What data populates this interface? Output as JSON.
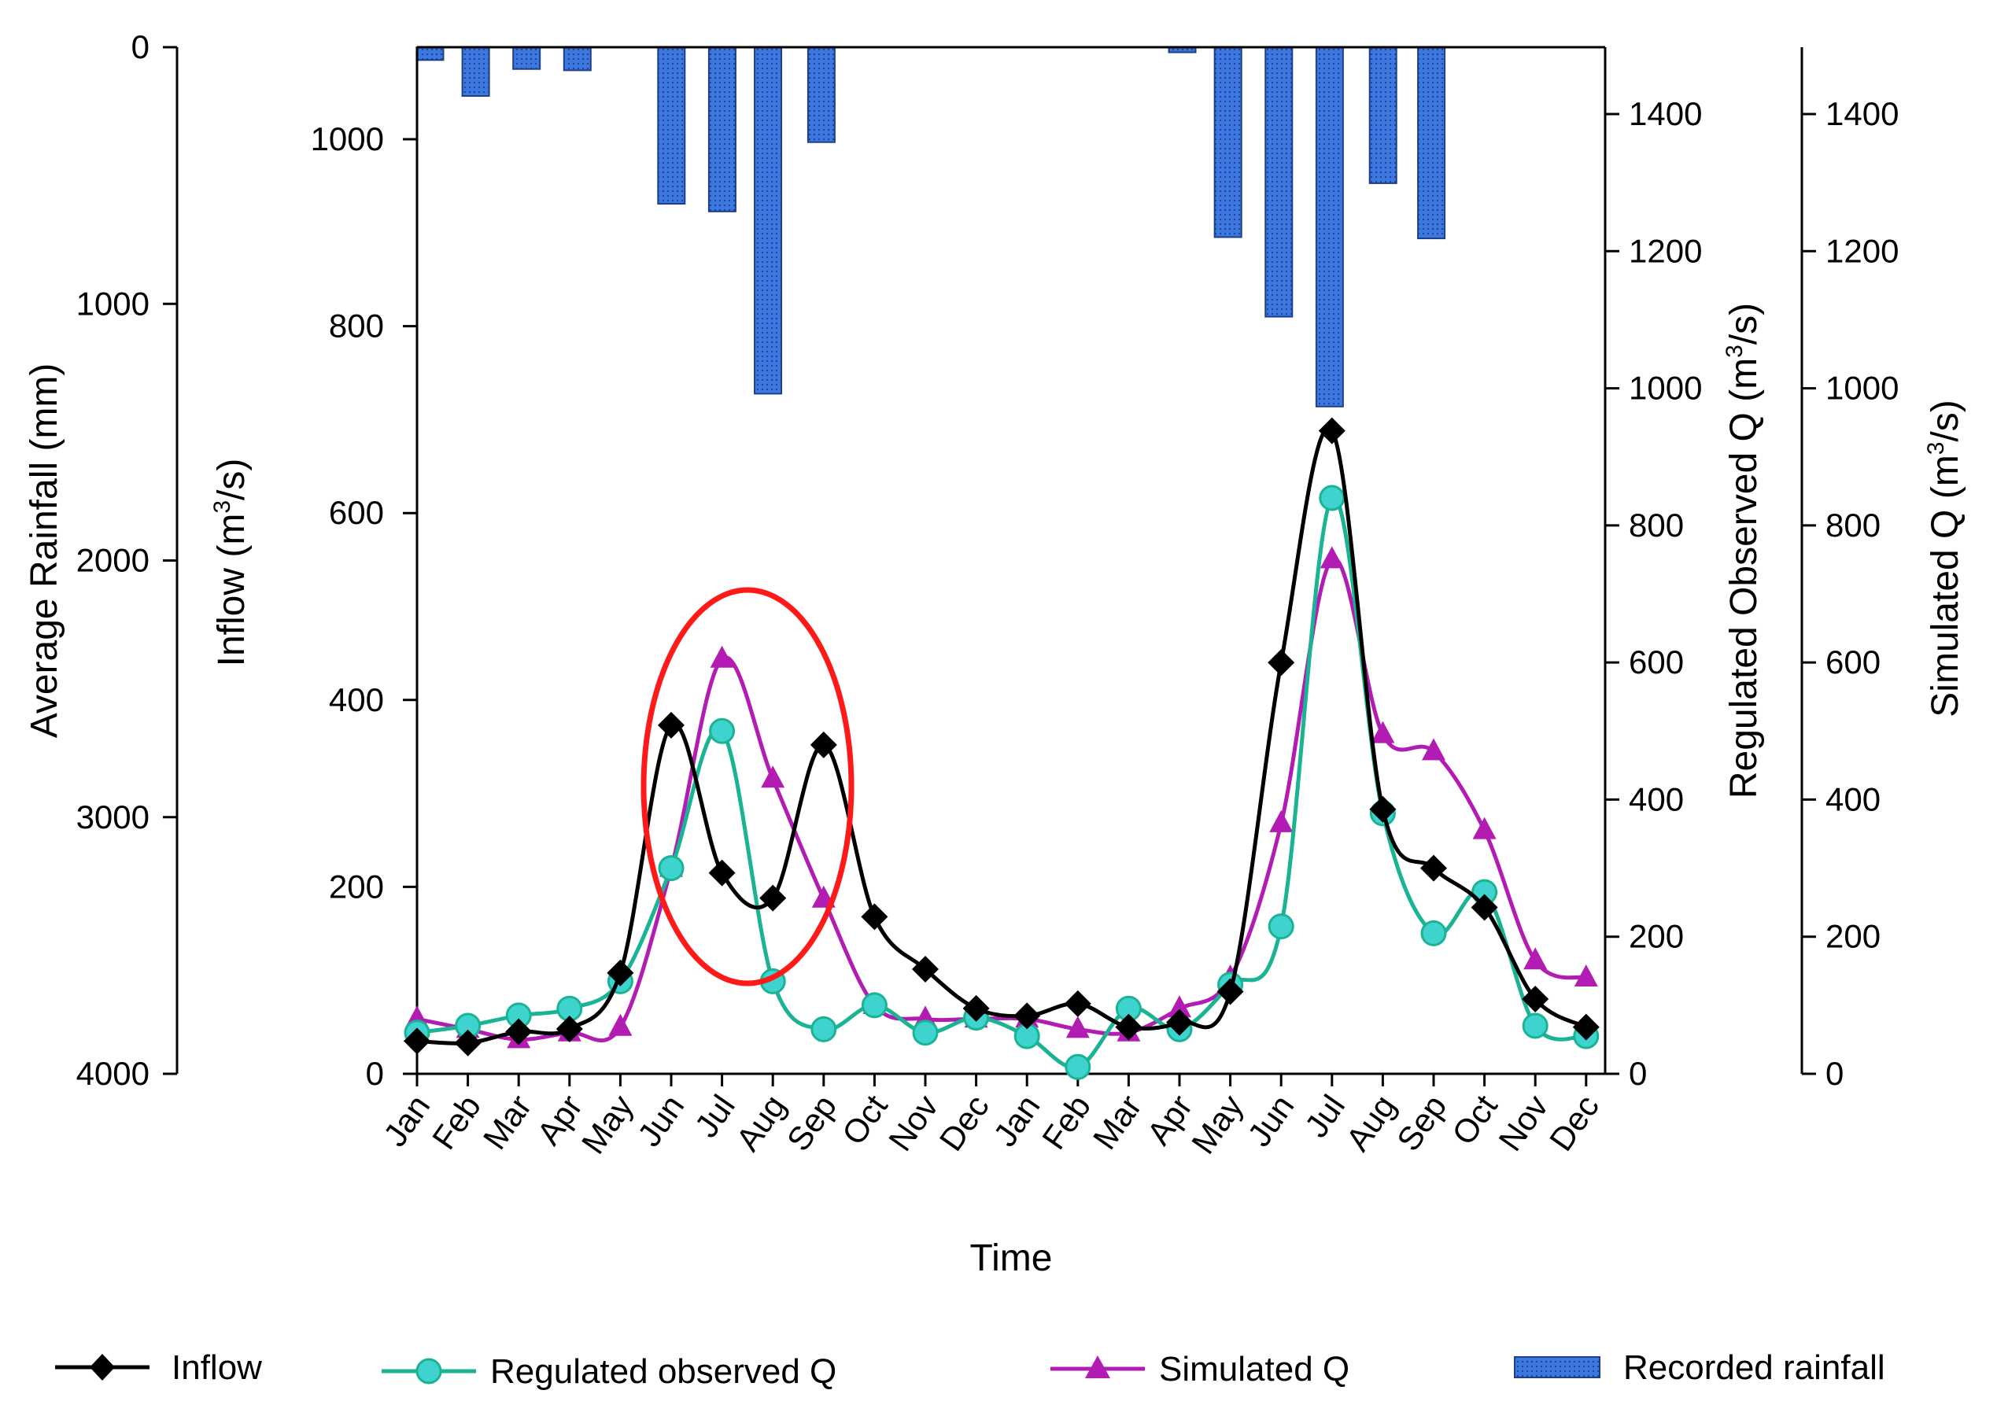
{
  "chart_data": {
    "type": "line",
    "title": "",
    "categories": [
      "Jan",
      "Feb",
      "Mar",
      "Apr",
      "May",
      "Jun",
      "Jul",
      "Aug",
      "Sep",
      "Oct",
      "Nov",
      "Dec",
      "Jan",
      "Feb",
      "Mar",
      "Apr",
      "May",
      "Jun",
      "Jul",
      "Aug",
      "Sep",
      "Oct",
      "Nov",
      "Dec"
    ],
    "xlabel": "Time",
    "axes": {
      "rainfall": {
        "label": "Average Rainfall (mm)",
        "range": [
          4000,
          0
        ],
        "ticks": [
          0,
          1000,
          2000,
          3000,
          4000
        ],
        "inverted": true
      },
      "inflow": {
        "label_main": "Inflow (m",
        "label_sup": "3",
        "label_end": "/s)",
        "range": [
          0,
          1100
        ],
        "ticks": [
          0,
          200,
          400,
          600,
          800,
          1000
        ]
      },
      "regulated": {
        "label_main": "Regulated Observed Q (m",
        "label_sup": "3",
        "label_end": "/s)",
        "range": [
          0,
          1500
        ],
        "ticks": [
          0,
          200,
          400,
          600,
          800,
          1000,
          1200,
          1400
        ]
      },
      "simulated": {
        "label_main": "Simulated Q (m",
        "label_sup": "3",
        "label_end": "/s)",
        "range": [
          0,
          1500
        ],
        "ticks": [
          0,
          200,
          400,
          600,
          800,
          1000,
          1200,
          1400
        ]
      }
    },
    "series": [
      {
        "name": "Inflow",
        "axis": "inflow",
        "color": "#000000",
        "marker": "diamond",
        "values": [
          35,
          33,
          45,
          48,
          108,
          373,
          215,
          188,
          352,
          168,
          112,
          70,
          62,
          75,
          50,
          55,
          88,
          440,
          688,
          283,
          220,
          178,
          80,
          50
        ]
      },
      {
        "name": "Regulated observed Q",
        "axis": "regulated",
        "color": "#1ab394",
        "marker": "circle",
        "values": [
          60,
          70,
          85,
          95,
          135,
          300,
          500,
          135,
          65,
          100,
          60,
          82,
          55,
          10,
          95,
          65,
          130,
          215,
          840,
          380,
          205,
          265,
          70,
          55
        ]
      },
      {
        "name": "Simulated Q",
        "axis": "simulated",
        "color": "#b31cb3",
        "marker": "triangle",
        "values": [
          80,
          65,
          50,
          60,
          68,
          300,
          605,
          430,
          255,
          100,
          80,
          80,
          80,
          65,
          60,
          95,
          140,
          365,
          750,
          495,
          470,
          355,
          165,
          140
        ]
      },
      {
        "name": "Recorded rainfall",
        "axis": "rainfall",
        "color": "#3d78e0",
        "type": "bar",
        "values": [
          50,
          190,
          85,
          90,
          610,
          640,
          1350,
          370,
          0,
          0,
          0,
          0,
          0,
          20,
          740,
          1050,
          1400,
          530,
          745,
          0,
          0,
          0,
          0,
          0
        ],
        "bar_positions": [
          0.1,
          1.0,
          2.0,
          3.0,
          4.85,
          5.85,
          6.75,
          7.8,
          null,
          null,
          null,
          null,
          null,
          14.9,
          15.8,
          16.8,
          17.8,
          18.85,
          19.8,
          null,
          null,
          null,
          null,
          null
        ]
      }
    ],
    "annotations": [
      {
        "type": "ellipse",
        "color": "#ff0000",
        "around": "Jun-Sep (year 1)"
      }
    ],
    "legend": {
      "placement": "bottom",
      "entries": [
        "Inflow",
        "Regulated observed Q",
        "Simulated Q",
        "Recorded rainfall"
      ]
    }
  }
}
